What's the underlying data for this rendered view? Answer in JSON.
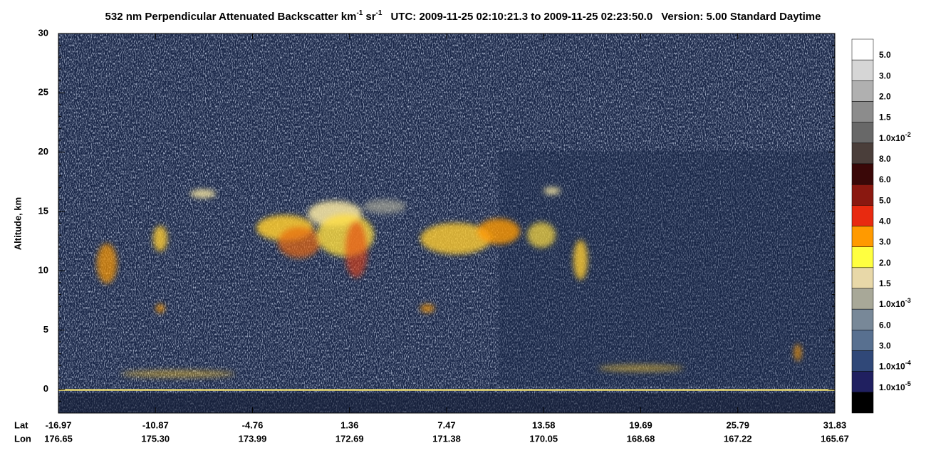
{
  "chart_data": {
    "type": "heatmap",
    "title": {
      "text": "532 nm Perpendicular Attenuated Backscatter km",
      "sup1": "-1",
      "unit2": "sr",
      "sup2": "-1",
      "utc": "UTC: 2009-11-25 02:10:21.3 to 2009-11-25 02:23:50.0",
      "version": "Version: 5.00 Standard Daytime"
    },
    "y_label": "Altitude, km",
    "ylim": [
      -2,
      30
    ],
    "yticks": [
      0,
      5,
      10,
      15,
      20,
      25,
      30
    ],
    "x_axis": {
      "row_labels": [
        "Lat",
        "Lon"
      ],
      "lat": [
        -16.97,
        -10.87,
        -4.76,
        1.36,
        7.47,
        13.58,
        19.69,
        25.79,
        31.83
      ],
      "lon": [
        176.65,
        175.3,
        173.99,
        172.69,
        171.38,
        170.05,
        168.68,
        167.22,
        165.67
      ]
    },
    "colorbar": [
      {
        "color": "#ffffff",
        "label": "5.0"
      },
      {
        "color": "#d6d6d6",
        "label": "3.0"
      },
      {
        "color": "#b0b0b0",
        "label": "2.0"
      },
      {
        "color": "#8c8c8c",
        "label": "1.5"
      },
      {
        "color": "#686868",
        "label": "1.0x10",
        "exp": "-2"
      },
      {
        "color": "#4a3e3a",
        "label": "8.0"
      },
      {
        "color": "#3a0808",
        "label": "6.0"
      },
      {
        "color": "#8a1810",
        "label": "5.0"
      },
      {
        "color": "#e82a10",
        "label": "4.0"
      },
      {
        "color": "#ff9a00",
        "label": "3.0"
      },
      {
        "color": "#ffff40",
        "label": "2.0"
      },
      {
        "color": "#e8d8a8",
        "label": "1.5"
      },
      {
        "color": "#a8a898",
        "label": "1.0x10",
        "exp": "-3"
      },
      {
        "color": "#788898",
        "label": "6.0"
      },
      {
        "color": "#587090",
        "label": "3.0"
      },
      {
        "color": "#304878",
        "label": "1.0x10",
        "exp": "-4"
      },
      {
        "color": "#202060",
        "label": "1.0x10",
        "exp": "-5"
      },
      {
        "color": "#000000"
      }
    ]
  }
}
